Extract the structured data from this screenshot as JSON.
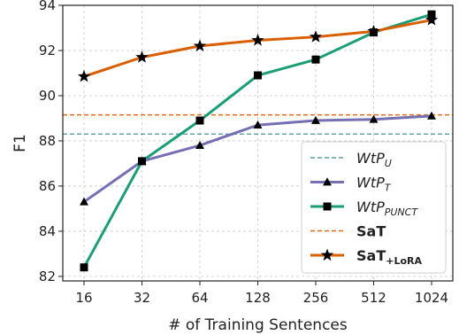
{
  "chart_data": {
    "type": "line",
    "xlabel": "# of Training Sentences",
    "ylabel": "F1",
    "x": [
      16,
      32,
      64,
      128,
      256,
      512,
      1024
    ],
    "xscale": "log2",
    "ylim": [
      81.8,
      94
    ],
    "yticks": [
      82,
      84,
      86,
      88,
      90,
      92,
      94
    ],
    "grid": true,
    "legend_position": "lower-right",
    "series": [
      {
        "key": "wtp_u",
        "name": "WtP",
        "sub": "U",
        "bold": false,
        "italic": true,
        "style": "hline",
        "y": 88.3,
        "color": "#5a9fa0"
      },
      {
        "key": "wtp_t",
        "name": "WtP",
        "sub": "T",
        "bold": false,
        "italic": true,
        "style": "line",
        "marker": "triangle",
        "color": "#7570b3",
        "values": [
          85.3,
          87.1,
          87.8,
          88.7,
          88.9,
          88.95,
          89.1
        ]
      },
      {
        "key": "wtp_punct",
        "name": "WtP",
        "sub": "PUNCT",
        "bold": false,
        "italic": true,
        "style": "line",
        "marker": "square",
        "color": "#1b9e77",
        "values": [
          82.4,
          87.1,
          88.9,
          90.9,
          91.6,
          92.8,
          93.6
        ]
      },
      {
        "key": "sat",
        "name": "SaT",
        "sub": "",
        "bold": true,
        "italic": false,
        "style": "hline",
        "y": 89.15,
        "color": "#e06c1a"
      },
      {
        "key": "sat_lora",
        "name": "SaT",
        "sub": "+LoRA",
        "bold": true,
        "italic": false,
        "style": "line",
        "marker": "star",
        "color": "#d95f02",
        "values": [
          90.85,
          91.7,
          92.2,
          92.45,
          92.6,
          92.85,
          93.35
        ]
      }
    ]
  }
}
